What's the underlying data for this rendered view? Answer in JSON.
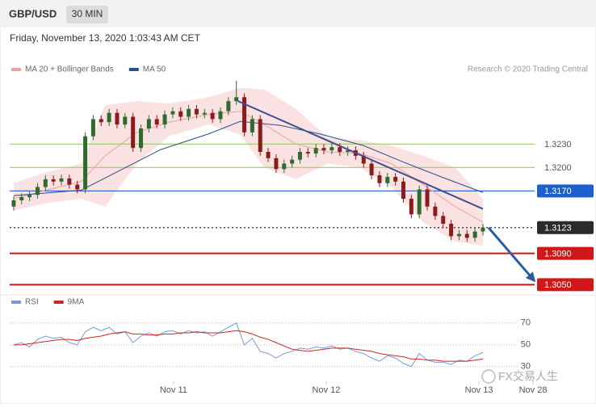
{
  "header": {
    "symbol": "GBP/USD",
    "timeframe": "30 MIN",
    "timestamp": "Friday, November 13, 2020 1:03:43 AM CET"
  },
  "credit": "Research © 2020 Trading Central",
  "watermark": "FX交易人生",
  "chart_data": [
    {
      "type": "candlestick",
      "up_color": "#2f6b2f",
      "down_color": "#8a1c1c",
      "xlim": [
        0,
        66
      ],
      "ylim": [
        1.304,
        1.331
      ],
      "ohlc": {
        "open": [
          1.315,
          1.3158,
          1.3162,
          1.3165,
          1.3175,
          1.3185,
          1.3182,
          1.3186,
          1.3178,
          1.3172,
          1.324,
          1.3262,
          1.3258,
          1.327,
          1.3255,
          1.3265,
          1.3225,
          1.325,
          1.3262,
          1.3255,
          1.3268,
          1.3272,
          1.3265,
          1.3275,
          1.3268,
          1.327,
          1.3262,
          1.3272,
          1.3285,
          1.329,
          1.3245,
          1.3262,
          1.322,
          1.3212,
          1.3198,
          1.3205,
          1.321,
          1.322,
          1.3218,
          1.3225,
          1.3222,
          1.3226,
          1.322,
          1.3222,
          1.3215,
          1.3205,
          1.319,
          1.318,
          1.3188,
          1.3182,
          1.316,
          1.314,
          1.3172,
          1.315,
          1.3138,
          1.3128,
          1.3112,
          1.3115,
          1.311,
          1.3118
        ],
        "high": [
          1.3163,
          1.3167,
          1.317,
          1.318,
          1.319,
          1.319,
          1.3191,
          1.3191,
          1.3183,
          1.3245,
          1.3267,
          1.3267,
          1.3275,
          1.3275,
          1.327,
          1.327,
          1.3255,
          1.3267,
          1.3267,
          1.3273,
          1.3277,
          1.3277,
          1.328,
          1.328,
          1.3275,
          1.3275,
          1.3277,
          1.329,
          1.3311,
          1.3295,
          1.3267,
          1.3267,
          1.3225,
          1.3217,
          1.321,
          1.3215,
          1.3225,
          1.3225,
          1.323,
          1.323,
          1.3231,
          1.3231,
          1.3227,
          1.3227,
          1.322,
          1.321,
          1.3195,
          1.3193,
          1.3193,
          1.3187,
          1.3165,
          1.3177,
          1.3177,
          1.3155,
          1.3143,
          1.3133,
          1.312,
          1.312,
          1.3123,
          1.3128
        ],
        "low": [
          1.3145,
          1.3153,
          1.3157,
          1.316,
          1.317,
          1.3177,
          1.3177,
          1.3173,
          1.3167,
          1.3167,
          1.3235,
          1.3253,
          1.3253,
          1.325,
          1.325,
          1.322,
          1.322,
          1.3245,
          1.325,
          1.325,
          1.3263,
          1.326,
          1.326,
          1.3263,
          1.3263,
          1.3257,
          1.3257,
          1.3267,
          1.328,
          1.324,
          1.324,
          1.3215,
          1.3207,
          1.3193,
          1.3193,
          1.32,
          1.3205,
          1.3213,
          1.3213,
          1.3217,
          1.3217,
          1.3215,
          1.3215,
          1.321,
          1.32,
          1.3185,
          1.3175,
          1.3175,
          1.3177,
          1.3155,
          1.3135,
          1.3135,
          1.3145,
          1.3133,
          1.3123,
          1.3107,
          1.3107,
          1.3105,
          1.3105,
          1.3113
        ],
        "close": [
          1.3158,
          1.3162,
          1.3165,
          1.3175,
          1.3185,
          1.3182,
          1.3186,
          1.3178,
          1.3172,
          1.324,
          1.3262,
          1.3258,
          1.327,
          1.3255,
          1.3265,
          1.3225,
          1.325,
          1.3262,
          1.3255,
          1.3268,
          1.3272,
          1.3265,
          1.3275,
          1.3268,
          1.327,
          1.3262,
          1.3272,
          1.3285,
          1.329,
          1.3245,
          1.3262,
          1.322,
          1.3212,
          1.3198,
          1.3205,
          1.321,
          1.322,
          1.3218,
          1.3225,
          1.3222,
          1.3226,
          1.322,
          1.3222,
          1.3215,
          1.3205,
          1.319,
          1.318,
          1.3188,
          1.3182,
          1.316,
          1.314,
          1.3172,
          1.315,
          1.3138,
          1.3128,
          1.3112,
          1.3115,
          1.311,
          1.3118,
          1.3123
        ]
      },
      "series": [
        {
          "name": "MA 20 + Bollinger Bands",
          "color": "#f0a0a0",
          "x": [
            0.5,
            5,
            9,
            12,
            16,
            20,
            25,
            29,
            32,
            36,
            40,
            44,
            48,
            52,
            56,
            59.5
          ],
          "values": [
            1.316,
            1.3172,
            1.3182,
            1.3215,
            1.3245,
            1.3258,
            1.3268,
            1.3272,
            1.3255,
            1.323,
            1.322,
            1.3218,
            1.3205,
            1.3178,
            1.315,
            1.313
          ],
          "upper": [
            1.318,
            1.3195,
            1.3205,
            1.328,
            1.3285,
            1.3282,
            1.329,
            1.3302,
            1.33,
            1.3275,
            1.3238,
            1.3235,
            1.3228,
            1.3215,
            1.32,
            1.316
          ],
          "lower": [
            1.3145,
            1.3155,
            1.316,
            1.315,
            1.3205,
            1.324,
            1.3255,
            1.3242,
            1.32,
            1.3185,
            1.3205,
            1.32,
            1.3175,
            1.313,
            1.3105,
            1.31
          ]
        },
        {
          "name": "MA 50",
          "color": "#2c4f8a",
          "x": [
            0.5,
            9,
            14,
            19,
            25,
            29,
            34,
            39,
            44.5,
            49.5,
            54.5,
            59.5
          ],
          "values": [
            1.3164,
            1.3171,
            1.3197,
            1.3223,
            1.3243,
            1.3259,
            1.3254,
            1.3243,
            1.3228,
            1.3207,
            1.3187,
            1.3168
          ]
        }
      ],
      "levels": [
        {
          "value": 1.323,
          "label": "1.3230",
          "color": "#9ccc65",
          "boxed": false
        },
        {
          "value": 1.32,
          "label": "1.3200",
          "color": "#9ccc65",
          "boxed": false
        },
        {
          "value": 1.317,
          "label": "1.3170",
          "color": "#1e5fd0",
          "boxed": true
        },
        {
          "value": 1.3123,
          "label": "1.3123",
          "color": "#2b2b2b",
          "boxed": true,
          "dotted": true
        },
        {
          "value": 1.309,
          "label": "1.3090",
          "color": "#d01818",
          "boxed": true
        },
        {
          "value": 1.305,
          "label": "1.3050",
          "color": "#d01818",
          "boxed": true
        }
      ],
      "trendline": {
        "x": [
          28.7,
          59.5
        ],
        "values": [
          1.3285,
          1.3147
        ],
        "color": "#3f4f8f"
      },
      "arrow": {
        "x": [
          60.2,
          65.8
        ],
        "values": [
          1.3123,
          1.3057
        ],
        "color": "#2a5d9f"
      }
    },
    {
      "type": "line",
      "xlim": [
        0,
        66
      ],
      "ylim": [
        18,
        81
      ],
      "yticks": [
        30,
        50,
        70
      ],
      "xticks": [
        {
          "value": 20.6,
          "label": "Nov 11"
        },
        {
          "value": 39.8,
          "label": "Nov 12"
        },
        {
          "value": 59,
          "label": "Nov 13"
        },
        {
          "value": 65.8,
          "label": "Nov 28"
        }
      ],
      "series": [
        {
          "name": "RSI",
          "color": "#7a9ad6",
          "values": [
            50,
            52,
            48,
            55,
            58,
            56,
            57,
            52,
            50,
            62,
            66,
            63,
            66,
            60,
            62,
            52,
            58,
            61,
            58,
            62,
            63,
            60,
            63,
            61,
            62,
            58,
            62,
            66,
            70,
            50,
            56,
            44,
            42,
            38,
            42,
            44,
            47,
            46,
            48,
            47,
            49,
            46,
            47,
            44,
            42,
            38,
            35,
            40,
            38,
            33,
            30,
            42,
            36,
            34,
            34,
            32,
            36,
            35,
            40,
            43
          ]
        },
        {
          "name": "9MA",
          "color": "#c62828",
          "values": [
            50,
            50,
            51,
            52,
            53,
            54,
            55,
            55,
            54,
            56,
            57,
            58,
            60,
            61,
            62,
            60,
            60,
            59,
            59,
            60,
            60,
            61,
            61,
            62,
            61,
            61,
            61,
            62,
            63,
            62,
            60,
            57,
            55,
            52,
            49,
            46,
            45,
            44,
            45,
            46,
            47,
            47,
            47,
            46,
            45,
            44,
            42,
            41,
            40,
            39,
            37,
            37,
            36,
            36,
            35,
            35,
            35,
            35,
            36,
            37
          ]
        }
      ]
    }
  ]
}
